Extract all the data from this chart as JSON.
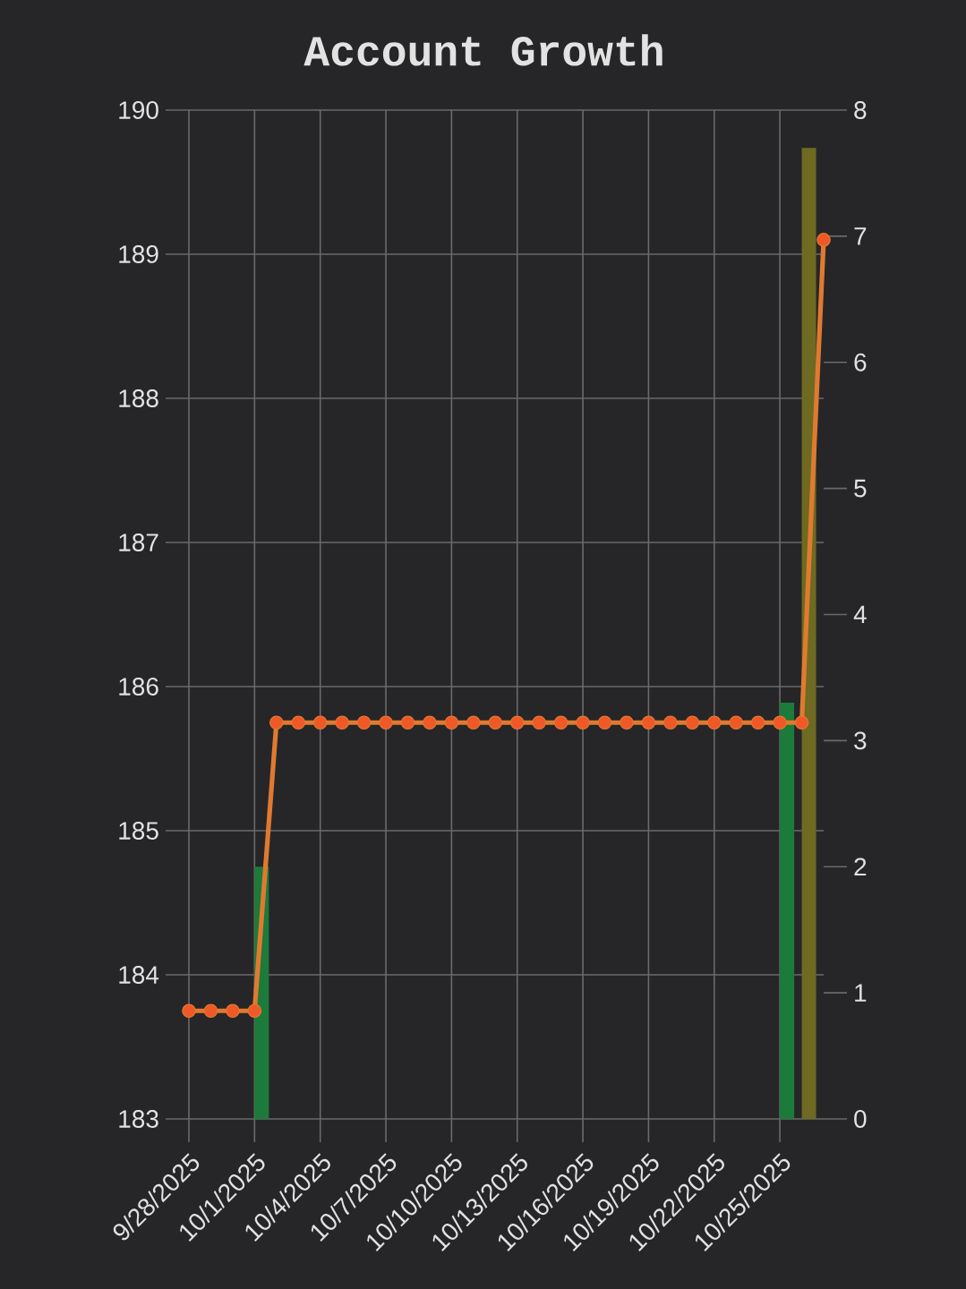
{
  "chart_data": {
    "type": "line",
    "title": "Account Growth",
    "x": [
      "2025-09-28",
      "2025-09-29",
      "2025-09-30",
      "2025-10-01",
      "2025-10-02",
      "2025-10-03",
      "2025-10-04",
      "2025-10-05",
      "2025-10-06",
      "2025-10-07",
      "2025-10-08",
      "2025-10-09",
      "2025-10-10",
      "2025-10-11",
      "2025-10-12",
      "2025-10-13",
      "2025-10-14",
      "2025-10-15",
      "2025-10-16",
      "2025-10-17",
      "2025-10-18",
      "2025-10-19",
      "2025-10-20",
      "2025-10-21",
      "2025-10-22",
      "2025-10-23",
      "2025-10-24",
      "2025-10-25",
      "2025-10-26",
      "2025-10-27"
    ],
    "xlim": [
      "2025-09-28",
      "2025-10-27"
    ],
    "xticks": [
      {
        "value": "2025-09-28",
        "label": "9/28/2025"
      },
      {
        "value": "2025-10-01",
        "label": "10/1/2025"
      },
      {
        "value": "2025-10-04",
        "label": "10/4/2025"
      },
      {
        "value": "2025-10-07",
        "label": "10/7/2025"
      },
      {
        "value": "2025-10-10",
        "label": "10/10/2025"
      },
      {
        "value": "2025-10-13",
        "label": "10/13/2025"
      },
      {
        "value": "2025-10-16",
        "label": "10/16/2025"
      },
      {
        "value": "2025-10-19",
        "label": "10/19/2025"
      },
      {
        "value": "2025-10-22",
        "label": "10/22/2025"
      },
      {
        "value": "2025-10-25",
        "label": "10/25/2025"
      }
    ],
    "ylim": [
      183,
      190
    ],
    "yticks": [
      183,
      184,
      185,
      186,
      187,
      188,
      189,
      190
    ],
    "y2lim": [
      0,
      8
    ],
    "y2ticks": [
      0,
      1,
      2,
      3,
      4,
      5,
      6,
      7,
      8
    ],
    "grid": true,
    "marker": "circle",
    "series": [
      {
        "color": "#e07a30",
        "values": [
          183.75,
          183.75,
          183.75,
          183.75,
          185.75,
          185.75,
          185.75,
          185.75,
          185.75,
          185.75,
          185.75,
          185.75,
          185.75,
          185.75,
          185.75,
          185.75,
          185.75,
          185.75,
          185.75,
          185.75,
          185.75,
          185.75,
          185.75,
          185.75,
          185.75,
          185.75,
          185.75,
          185.75,
          185.75,
          189.1
        ]
      },
      {
        "type": "bar",
        "axis": "y2",
        "color": "#1c7a3a",
        "x": [
          "2025-10-01",
          "2025-10-25"
        ],
        "values": [
          2,
          3.3
        ]
      },
      {
        "type": "bar",
        "axis": "y2",
        "color": "#6e6a22",
        "x": [
          "2025-10-26"
        ],
        "values": [
          7.7
        ]
      }
    ]
  }
}
